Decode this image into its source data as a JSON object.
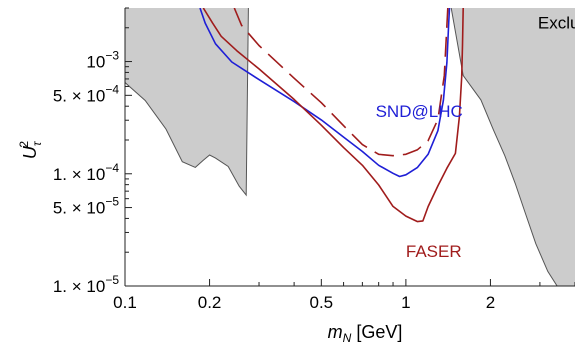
{
  "chart_data": {
    "type": "line",
    "title": "",
    "xlabel": {
      "main": "m",
      "sub": "N",
      "unit": " [GeV]"
    },
    "ylabel": {
      "main": "U",
      "sub": "τ",
      "sup": "2"
    },
    "xscale": "log",
    "yscale": "log",
    "xlim": [
      0.1,
      4.0
    ],
    "ylim": [
      1e-05,
      0.003
    ],
    "x_ticks": [
      {
        "value": 0.1,
        "label": "0.1"
      },
      {
        "value": 0.2,
        "label": "0.2"
      },
      {
        "value": 0.5,
        "label": "0.5"
      },
      {
        "value": 1,
        "label": "1"
      },
      {
        "value": 2,
        "label": "2"
      }
    ],
    "y_ticks": [
      {
        "value": 1e-05,
        "mant": "1. × 10",
        "exp": "−5"
      },
      {
        "value": 5e-05,
        "mant": "5. × 10",
        "exp": "−5"
      },
      {
        "value": 0.0001,
        "mant": "1. × 10",
        "exp": "−4"
      },
      {
        "value": 0.0005,
        "mant": "5. × 10",
        "exp": "−4"
      },
      {
        "value": 0.001,
        "mant": "10",
        "exp": "−3"
      }
    ],
    "grid": false,
    "colors": {
      "excluded": "#cccccc",
      "excluded_edge": "#555555",
      "snd": "#1f1fd6",
      "faser": "#a01c1c"
    },
    "excluded_regions": [
      {
        "boundary": [
          [
            0.1,
            0.00065
          ],
          [
            0.118,
            0.00045
          ],
          [
            0.14,
            0.00025
          ],
          [
            0.16,
            0.000128
          ],
          [
            0.178,
            0.000114
          ],
          [
            0.19,
            0.000132
          ],
          [
            0.2,
            0.000147
          ],
          [
            0.21,
            0.000138
          ],
          [
            0.233,
            0.000116
          ],
          [
            0.255,
            7.75e-05
          ],
          [
            0.27,
            6.45e-05
          ],
          [
            0.275,
            0.003
          ]
        ]
      },
      {
        "boundary": [
          [
            1.45,
            0.003
          ],
          [
            1.6,
            0.00075
          ],
          [
            1.85,
            0.000455
          ],
          [
            2.05,
            0.000245
          ],
          [
            2.25,
            0.000145
          ],
          [
            2.45,
            8.2e-05
          ],
          [
            2.65,
            4.6e-05
          ],
          [
            2.9,
            2.38e-05
          ],
          [
            3.2,
            1.35e-05
          ],
          [
            3.5,
            9.5e-06
          ],
          [
            4.0,
            8e-06
          ]
        ]
      }
    ],
    "series": [
      {
        "label": "SND@LHC",
        "style": "solid",
        "points": [
          [
            0.185,
            0.003
          ],
          [
            0.193,
            0.0022
          ],
          [
            0.21,
            0.00144
          ],
          [
            0.24,
            0.00099
          ],
          [
            0.3,
            0.00069
          ],
          [
            0.4,
            0.00044
          ],
          [
            0.5,
            0.000302
          ],
          [
            0.6,
            0.000212
          ],
          [
            0.7,
            0.000158
          ],
          [
            0.8,
            0.000119
          ],
          [
            0.9,
            0.000101
          ],
          [
            0.95,
            9.46e-05
          ],
          [
            1.0,
            9.8e-05
          ],
          [
            1.1,
            0.000114
          ],
          [
            1.2,
            0.000149
          ],
          [
            1.3,
            0.000242
          ],
          [
            1.36,
            0.000452
          ],
          [
            1.4,
            0.00098
          ],
          [
            1.42,
            0.0022
          ],
          [
            1.43,
            0.003
          ]
        ]
      },
      {
        "label": "",
        "style": "dashed",
        "points": [
          [
            0.245,
            0.003
          ],
          [
            0.26,
            0.0021
          ],
          [
            0.3,
            0.00139
          ],
          [
            0.4,
            0.00071
          ],
          [
            0.5,
            0.00043
          ],
          [
            0.6,
            0.000268
          ],
          [
            0.7,
            0.000182
          ],
          [
            0.8,
            0.000149
          ],
          [
            0.9,
            0.000145
          ],
          [
            1.0,
            0.000149
          ],
          [
            1.1,
            0.000164
          ],
          [
            1.2,
            0.000197
          ],
          [
            1.3,
            0.000305
          ],
          [
            1.37,
            0.00075
          ],
          [
            1.41,
            0.003
          ]
        ]
      },
      {
        "label": "FASER",
        "style": "solid",
        "points": [
          [
            0.19,
            0.003
          ],
          [
            0.205,
            0.0022
          ],
          [
            0.22,
            0.00168
          ],
          [
            0.25,
            0.00125
          ],
          [
            0.3,
            0.00086
          ],
          [
            0.4,
            0.00046
          ],
          [
            0.5,
            0.000271
          ],
          [
            0.6,
            0.000171
          ],
          [
            0.7,
            0.000119
          ],
          [
            0.8,
            7.95e-05
          ],
          [
            0.9,
            5.12e-05
          ],
          [
            1.0,
            4.2e-05
          ],
          [
            1.1,
            3.75e-05
          ],
          [
            1.15,
            3.8e-05
          ],
          [
            1.2,
            5.1e-05
          ],
          [
            1.3,
            7.8e-05
          ],
          [
            1.4,
            0.000112
          ],
          [
            1.5,
            0.000152
          ],
          [
            1.55,
            0.000323
          ],
          [
            1.58,
            0.00073
          ],
          [
            1.59,
            0.0014
          ],
          [
            1.6,
            0.003
          ]
        ]
      }
    ],
    "annotations": [
      {
        "text": "SND@LHC",
        "color": "#1f1fd6",
        "x": 0.78,
        "y": 0.00032
      },
      {
        "text": "FASER",
        "color": "#a01c1c",
        "x": 1.0,
        "y": 1.82e-05
      },
      {
        "text": "Excluded",
        "color": "#000000",
        "x": 2.95,
        "y": 0.00197
      }
    ]
  }
}
